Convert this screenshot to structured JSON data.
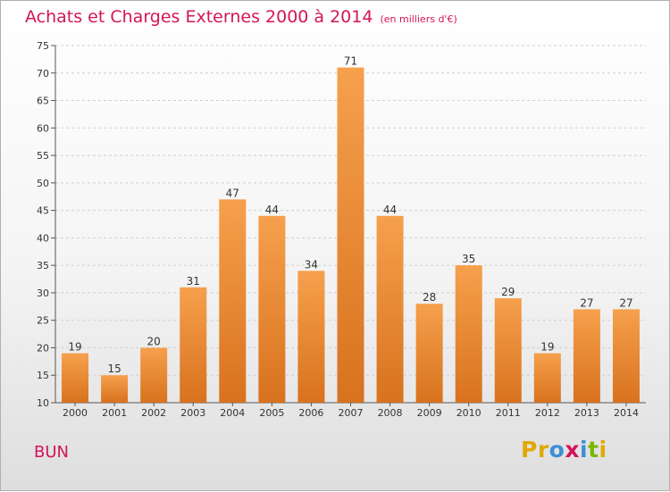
{
  "header": {
    "title": "Achats et Charges Externes 2000 à 2014",
    "unit": "(en milliers d'€)"
  },
  "footer": {
    "commune": "BUN",
    "logo": "Proxiti",
    "logo_colors": [
      "#e2a800",
      "#e2a800",
      "#3c8fd6",
      "#d4145a",
      "#3c8fd6",
      "#7ab800",
      "#e2a800"
    ]
  },
  "colors": {
    "title": "#d4145a",
    "bar_top": "#f6a04d",
    "bar_bottom": "#d8721e"
  },
  "chart_data": {
    "type": "bar",
    "title": "Achats et Charges Externes 2000 à 2014",
    "subtitle": "(en milliers d'€)",
    "categories": [
      "2000",
      "2001",
      "2002",
      "2003",
      "2004",
      "2005",
      "2006",
      "2007",
      "2008",
      "2009",
      "2010",
      "2011",
      "2012",
      "2013",
      "2014"
    ],
    "values": [
      19,
      15,
      20,
      31,
      47,
      44,
      34,
      71,
      44,
      28,
      35,
      29,
      19,
      27,
      27
    ],
    "data_labels": [
      "19",
      "15",
      "20",
      "31",
      "47",
      "44",
      "34",
      "71",
      "44",
      "28",
      "35",
      "29",
      "19",
      "27",
      "27"
    ],
    "ylim": [
      10,
      75
    ],
    "yticks": [
      10,
      15,
      20,
      25,
      30,
      35,
      40,
      45,
      50,
      55,
      60,
      65,
      70,
      75
    ],
    "xlabel": "",
    "ylabel": "",
    "grid": "horizontal dashed"
  }
}
